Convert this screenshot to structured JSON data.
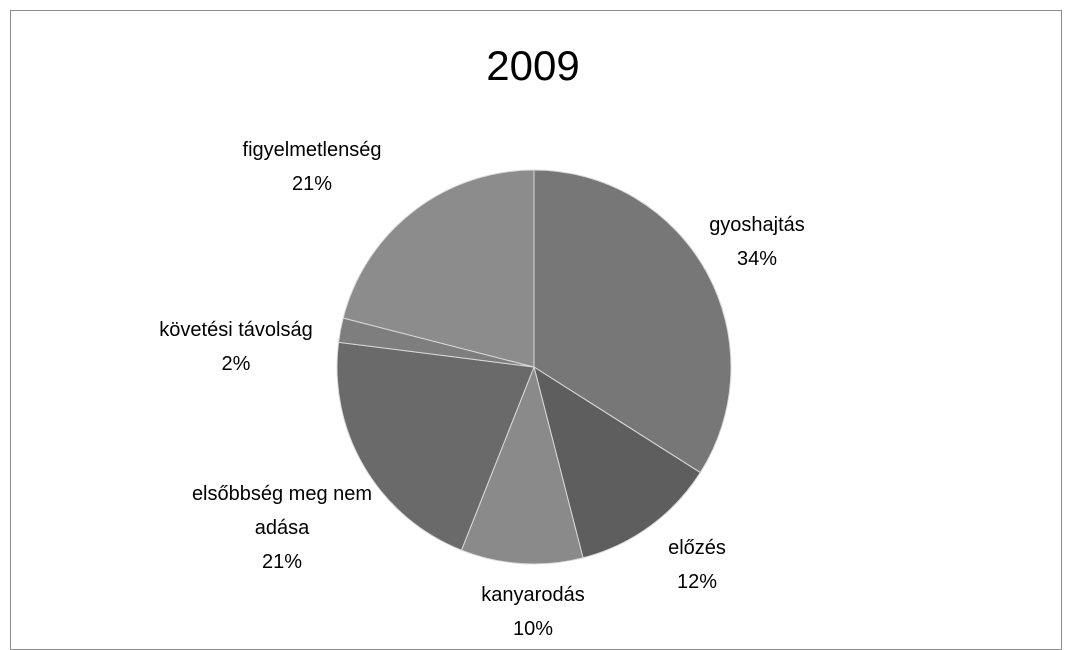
{
  "chart_data": {
    "type": "pie",
    "title": "2009",
    "categories": [
      "gyoshajtás",
      "előzés",
      "kanyarodás",
      "elsőbbség meg nem adása",
      "követési távolság",
      "figyelmetlenség"
    ],
    "values": [
      34,
      12,
      10,
      21,
      2,
      21
    ],
    "value_labels": [
      "34%",
      "12%",
      "10%",
      "21%",
      "2%",
      "21%"
    ],
    "colors": [
      "#777777",
      "#5e5e5e",
      "#8a8a8a",
      "#6a6a6a",
      "#7e7e7e",
      "#8c8c8c"
    ]
  }
}
